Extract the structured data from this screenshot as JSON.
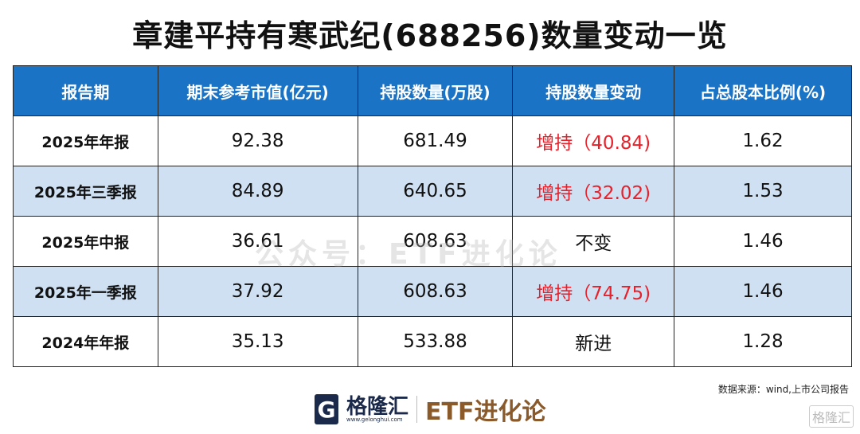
{
  "title": "章建平持有寒武纪(688256)数量变动一览",
  "headers": [
    "报告期",
    "期末参考市值(亿元)",
    "持股数量(万股)",
    "持股数量变动",
    "占总股本比例(%)"
  ],
  "rows": [
    {
      "period": "2025年年报",
      "value": "92.38",
      "shares": "681.49",
      "change": "增持（40.84)",
      "ratio": "1.62",
      "change_color": "red"
    },
    {
      "period": "2025年三季报",
      "value": "84.89",
      "shares": "640.65",
      "change": "增持（32.02)",
      "ratio": "1.53",
      "change_color": "red"
    },
    {
      "period": "2025年中报",
      "value": "36.61",
      "shares": "608.63",
      "change": "不变",
      "ratio": "1.46",
      "change_color": "black"
    },
    {
      "period": "2025年一季报",
      "value": "37.92",
      "shares": "608.63",
      "change": "增持（74.75)",
      "ratio": "1.46",
      "change_color": "red"
    },
    {
      "period": "2024年年报",
      "value": "35.13",
      "shares": "533.88",
      "change": "新进",
      "ratio": "1.28",
      "change_color": "black"
    }
  ],
  "watermark": "公众号：ETF进化论",
  "source": "数据来源：wind,上市公司报告",
  "logo": {
    "brand": "格隆汇",
    "url": "www.gelonghui.com",
    "partner": "ETF进化论",
    "corner": "格隆汇"
  },
  "colors": {
    "header": "#1a73c4",
    "alt_row": "#cfe0f3",
    "increase": "#e8202a"
  }
}
